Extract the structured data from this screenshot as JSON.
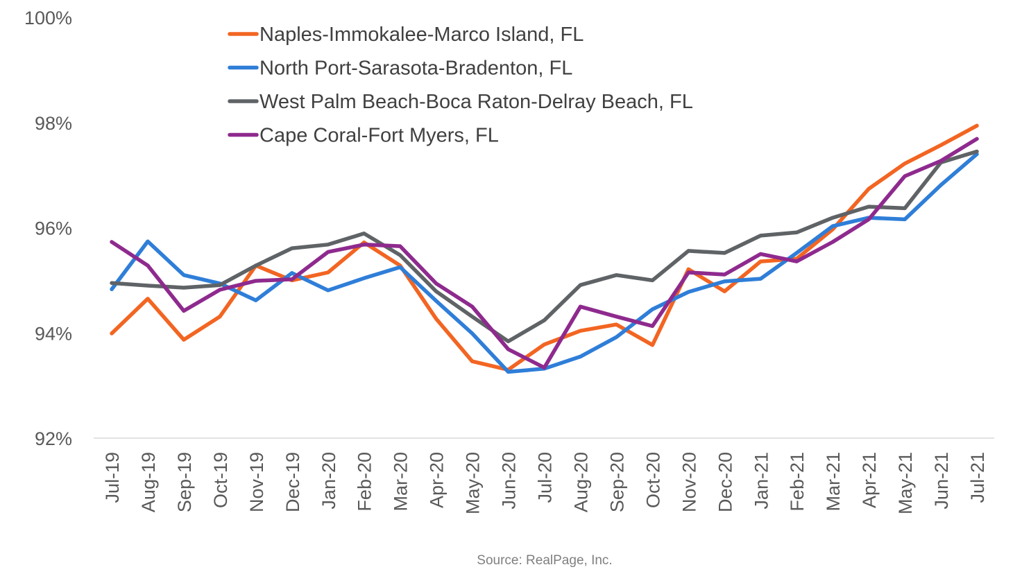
{
  "chart_data": {
    "type": "line",
    "title": "",
    "xlabel": "",
    "ylabel": "",
    "ylim": [
      92,
      100
    ],
    "yticks": [
      "92%",
      "94%",
      "96%",
      "98%",
      "100%"
    ],
    "ytick_values": [
      92,
      94,
      96,
      98,
      100
    ],
    "grid": false,
    "legend_placement": "top-center",
    "categories": [
      "Jul-19",
      "Aug-19",
      "Sep-19",
      "Oct-19",
      "Nov-19",
      "Dec-19",
      "Jan-20",
      "Feb-20",
      "Mar-20",
      "Apr-20",
      "May-20",
      "Jun-20",
      "Jul-20",
      "Aug-20",
      "Sep-20",
      "Oct-20",
      "Nov-20",
      "Dec-20",
      "Jan-21",
      "Feb-21",
      "Mar-21",
      "Apr-21",
      "May-21",
      "Jun-21",
      "Jul-21"
    ],
    "series": [
      {
        "name": "Naples-Immokalee-Marco Island, FL",
        "color": "#f26522",
        "values": [
          93.99,
          94.65,
          93.87,
          94.31,
          95.28,
          95.0,
          95.15,
          95.72,
          95.28,
          94.27,
          93.46,
          93.3,
          93.78,
          94.04,
          94.16,
          93.77,
          95.21,
          94.79,
          95.36,
          95.41,
          95.97,
          96.74,
          97.22,
          97.57,
          97.94
        ]
      },
      {
        "name": "North Port-Sarasota-Bradenton, FL",
        "color": "#2f7ed8",
        "values": [
          94.83,
          95.74,
          95.1,
          94.94,
          94.62,
          95.14,
          94.81,
          95.04,
          95.25,
          94.61,
          93.99,
          93.26,
          93.32,
          93.55,
          93.92,
          94.45,
          94.78,
          94.98,
          95.03,
          95.52,
          96.03,
          96.19,
          96.16,
          96.81,
          97.4
        ]
      },
      {
        "name": "West Palm Beach-Boca Raton-Delray Beach, FL",
        "color": "#5f6366",
        "values": [
          94.95,
          94.9,
          94.86,
          94.91,
          95.28,
          95.61,
          95.68,
          95.89,
          95.48,
          94.79,
          94.31,
          93.84,
          94.24,
          94.91,
          95.1,
          95.0,
          95.56,
          95.52,
          95.85,
          95.91,
          96.19,
          96.4,
          96.37,
          97.24,
          97.45
        ]
      },
      {
        "name": "Cape Coral-Fort Myers, FL",
        "color": "#8e2a8e",
        "values": [
          95.73,
          95.28,
          94.42,
          94.82,
          94.99,
          95.02,
          95.54,
          95.68,
          95.65,
          94.94,
          94.5,
          93.69,
          93.34,
          94.5,
          94.31,
          94.13,
          95.15,
          95.11,
          95.5,
          95.36,
          95.73,
          96.16,
          96.98,
          97.27,
          97.69
        ]
      }
    ],
    "source": "Source: RealPage, Inc."
  }
}
